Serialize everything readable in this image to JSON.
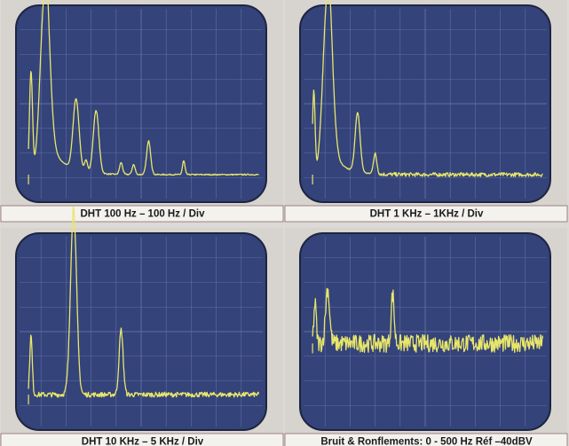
{
  "panels": [
    {
      "caption": "DHT  100 Hz – 100 Hz / Div"
    },
    {
      "caption": "DHT  1 KHz – 1KHz / Div"
    },
    {
      "caption": "DHT 10 KHz – 5 KHz / Div"
    },
    {
      "caption": "Bruit & Ronflements:  0 - 500 Hz  Réf –40dBV"
    }
  ]
}
